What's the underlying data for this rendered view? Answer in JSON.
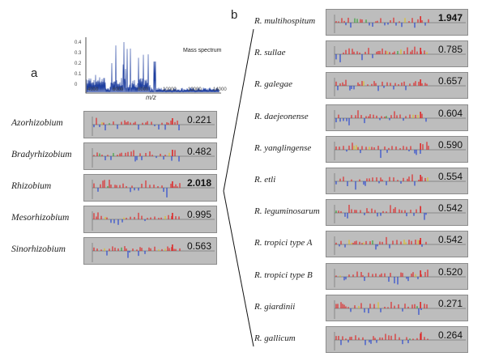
{
  "panel_a": {
    "letter": "a",
    "mass_spectrum": {
      "title": "Mass spectrum",
      "xlabel": "m/z",
      "x_ticks": [
        "4000",
        "6000",
        "8000",
        "10000",
        "12000",
        "14000"
      ],
      "y_ticks": [
        "0.4",
        "0.3",
        "0.2",
        "0.1",
        "0"
      ]
    },
    "rows": [
      {
        "label": "Azorhizobium",
        "score": "0.221",
        "bold": false
      },
      {
        "label": "Bradyrhizobium",
        "score": "0.482",
        "bold": false
      },
      {
        "label": "Rhizobium",
        "score": "2.018",
        "bold": true
      },
      {
        "label": "Mesorhizobium",
        "score": "0.995",
        "bold": false
      },
      {
        "label": "Sinorhizobium",
        "score": "0.563",
        "bold": false
      }
    ]
  },
  "panel_b": {
    "letter": "b",
    "rows": [
      {
        "label": "R. multihospitum",
        "score": "1.947",
        "bold": true
      },
      {
        "label": "R. sullae",
        "score": "0.785",
        "bold": false
      },
      {
        "label": "R. galegae",
        "score": "0.657",
        "bold": false
      },
      {
        "label": "R. daejeonense",
        "score": "0.604",
        "bold": false
      },
      {
        "label": "R. yanglingense",
        "score": "0.590",
        "bold": false
      },
      {
        "label": "R. etli",
        "score": "0.554",
        "bold": false
      },
      {
        "label": "R. leguminosarum",
        "score": "0.542",
        "bold": false
      },
      {
        "label": "R. tropici type A",
        "score": "0.542",
        "bold": false
      },
      {
        "label": "R. tropici type B",
        "score": "0.520",
        "bold": false
      },
      {
        "label": "R. giardinii",
        "score": "0.271",
        "bold": false
      },
      {
        "label": "R. gallicum",
        "score": "0.264",
        "bold": false
      }
    ]
  },
  "colors": {
    "plot_bg": "#bdbdbd",
    "match_peak": "#e02020",
    "ref_peak": "#2040d0",
    "extra_peak": "#e0c020",
    "green_peak": "#30a030",
    "spectrum_line": "#1f3f9f"
  }
}
